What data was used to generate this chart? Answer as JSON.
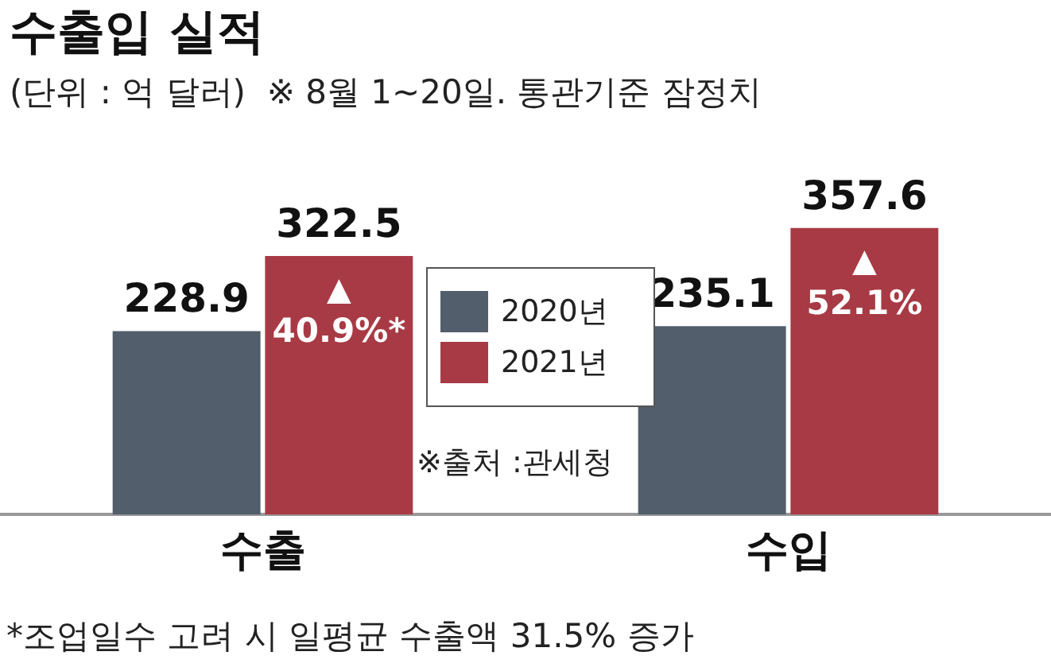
{
  "chart_data": {
    "type": "bar",
    "title": "수출입 실적",
    "subtitle": "(단위 : 억 달러)  ※ 8월 1~20일. 통관기준 잠정치",
    "categories": [
      "수출",
      "수입"
    ],
    "series": [
      {
        "name": "2020년",
        "color": "#525e6b",
        "values": [
          228.9,
          235.1
        ]
      },
      {
        "name": "2021년",
        "color": "#a83a45",
        "values": [
          322.5,
          357.6
        ]
      }
    ],
    "tick_labels": "x",
    "grid": false,
    "legend": "center",
    "data_labels": true,
    "annotations": [
      {
        "text": "▲\n40.9%*",
        "x": "수출",
        "y": 322.5
      },
      {
        "text": "▲\n52.1%",
        "x": "수입",
        "y": 357.6
      },
      "※출처 :관세청",
      "*조업일수 고려 시 일평균 수출액 31.5% 증가"
    ]
  }
}
